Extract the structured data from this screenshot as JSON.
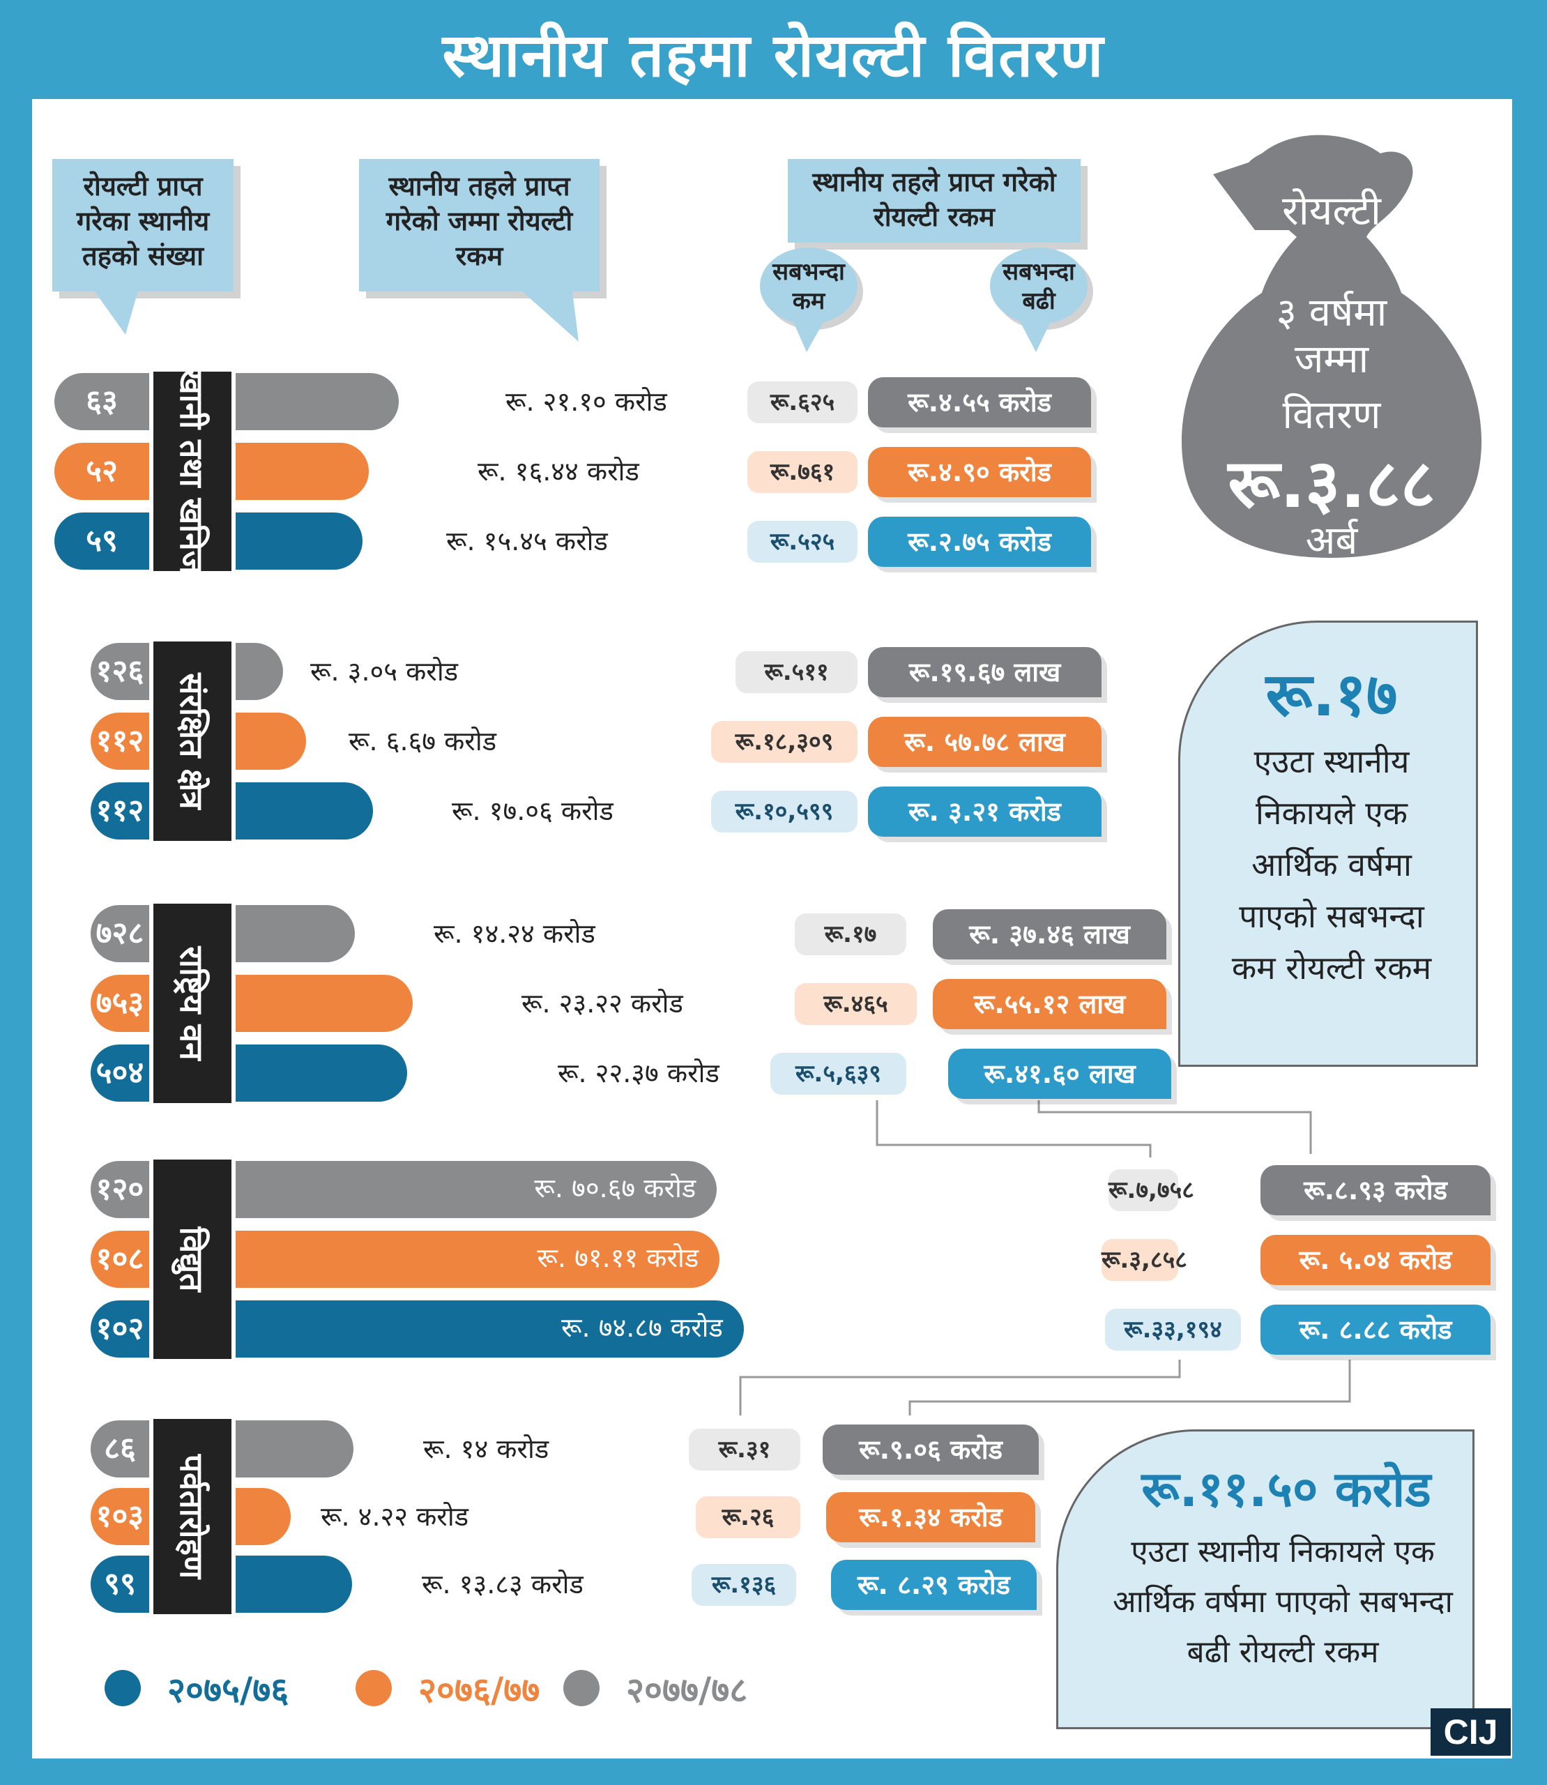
{
  "title": "स्थानीय तहमा रोयल्टी वितरण",
  "callouts": {
    "count": "रोयल्टी प्राप्त गरेका स्थानीय तहको संख्या",
    "total": "स्थानीय तहले प्राप्त गरेको जम्मा रोयल्टी रकम",
    "amount": "स्थानीय तहले प्राप्त गरेको रोयल्टी रकम",
    "min": "सबभन्दा कम",
    "max": "सबभन्दा बढी"
  },
  "bag": {
    "top": "रोयल्टी",
    "line1": "३ वर्षमा",
    "line2": "जम्मा",
    "line3": "वितरण",
    "amount": "रू.३.८८",
    "unit": "अर्ब"
  },
  "box_min": {
    "amount": "रू.१७",
    "text": "एउटा स्थानीय निकायले एक आर्थिक वर्षमा पाएको सबभन्दा कम रोयल्टी रकम"
  },
  "box_max": {
    "amount": "रू.११.५० करोड",
    "text": "एउटा स्थानीय निकायले एक आर्थिक वर्षमा पाएको सबभन्दा बढी रोयल्टी रकम"
  },
  "colors": {
    "y2077": "#8a8b8d",
    "y2076": "#ef843e",
    "y2075": "#126e98",
    "callout": "#a9d4e7"
  },
  "legend": [
    {
      "label": "२०७५/७६",
      "color": "#126e98"
    },
    {
      "label": "२०७६/७७",
      "color": "#ef843e"
    },
    {
      "label": "२०७७/७८",
      "color": "#8a8b8d"
    }
  ],
  "logo": "CIJ",
  "chart_data": {
    "type": "bar",
    "unit": "करोड",
    "series_order": [
      "२०७७/७८",
      "२०७६/७७",
      "२०७५/७६"
    ],
    "categories": [
      {
        "name": "खानी तथा खनिज",
        "rows": [
          {
            "year": "२०७७/७८",
            "count": "६३",
            "total_label": "रू. २१.१० करोड",
            "total": 21.1,
            "min": "रू.६२५",
            "max": "रू.४.५५ करोड"
          },
          {
            "year": "२०७६/७७",
            "count": "५२",
            "total_label": "रू. १६.४४ करोड",
            "total": 16.44,
            "min": "रू.७६१",
            "max": "रू.४.९० करोड"
          },
          {
            "year": "२०७५/७६",
            "count": "५९",
            "total_label": "रू. १५.४५ करोड",
            "total": 15.45,
            "min": "रू.५२५",
            "max": "रू.२.७५ करोड"
          }
        ]
      },
      {
        "name": "संरक्षित क्षेत्र",
        "rows": [
          {
            "year": "२०७७/७८",
            "count": "१२६",
            "total_label": "रू. ३.०५ करोड",
            "total": 3.05,
            "min": "रू.५११",
            "max": "रू.१९.६७ लाख"
          },
          {
            "year": "२०७६/७७",
            "count": "११२",
            "total_label": "रू. ६.६७ करोड",
            "total": 6.67,
            "min": "रू.१८,३०९",
            "max": "रू. ५७.७८ लाख"
          },
          {
            "year": "२०७५/७६",
            "count": "११२",
            "total_label": "रू. १७.०६ करोड",
            "total": 17.06,
            "min": "रू.१०,५९९",
            "max": "रू. ३.२१ करोड"
          }
        ]
      },
      {
        "name": "राष्ट्रिय वन",
        "rows": [
          {
            "year": "२०७७/७८",
            "count": "७२८",
            "total_label": "रू. १४.२४ करोड",
            "total": 14.24,
            "min": "रू.१७",
            "max": "रू. ३७.४६ लाख"
          },
          {
            "year": "२०७६/७७",
            "count": "७५३",
            "total_label": "रू. २३.२२ करोड",
            "total": 23.22,
            "min": "रू.४६५",
            "max": "रू.५५.१२ लाख"
          },
          {
            "year": "२०७५/७६",
            "count": "५०४",
            "total_label": "रू. २२.३७ करोड",
            "total": 22.37,
            "min": "रू.५,६३९",
            "max": "रू.४१.६० लाख"
          }
        ]
      },
      {
        "name": "विद्युत",
        "rows": [
          {
            "year": "२०७७/७८",
            "count": "१२०",
            "total_label": "रू. ७०.६७ करोड",
            "total": 70.67,
            "min": "रू.७,७५८",
            "max": "रू.८.९३ करोड"
          },
          {
            "year": "२०७६/७७",
            "count": "१०८",
            "total_label": "रू. ७१.११ करोड",
            "total": 71.11,
            "min": "रू.३,८५८",
            "max": "रू. ५.०४ करोड"
          },
          {
            "year": "२०७५/७६",
            "count": "१०२",
            "total_label": "रू. ७४.८७ करोड",
            "total": 74.87,
            "min": "रू.३३,१९४",
            "max": "रू. ८.८८ करोड"
          }
        ]
      },
      {
        "name": "पर्वतारोहण",
        "rows": [
          {
            "year": "२०७७/७८",
            "count": "८६",
            "total_label": "रू. १४ करोड",
            "total": 14.0,
            "min": "रू.३१",
            "max": "रू.९.०६ करोड"
          },
          {
            "year": "२०७६/७७",
            "count": "१०३",
            "total_label": "रू. ४.२२ करोड",
            "total": 4.22,
            "min": "रू.२६",
            "max": "रू.१.३४ करोड"
          },
          {
            "year": "२०७५/७६",
            "count": "९९",
            "total_label": "रू. १३.८३ करोड",
            "total": 13.83,
            "min": "रू.१३६",
            "max": "रू. ८.२९ करोड"
          }
        ]
      }
    ]
  }
}
